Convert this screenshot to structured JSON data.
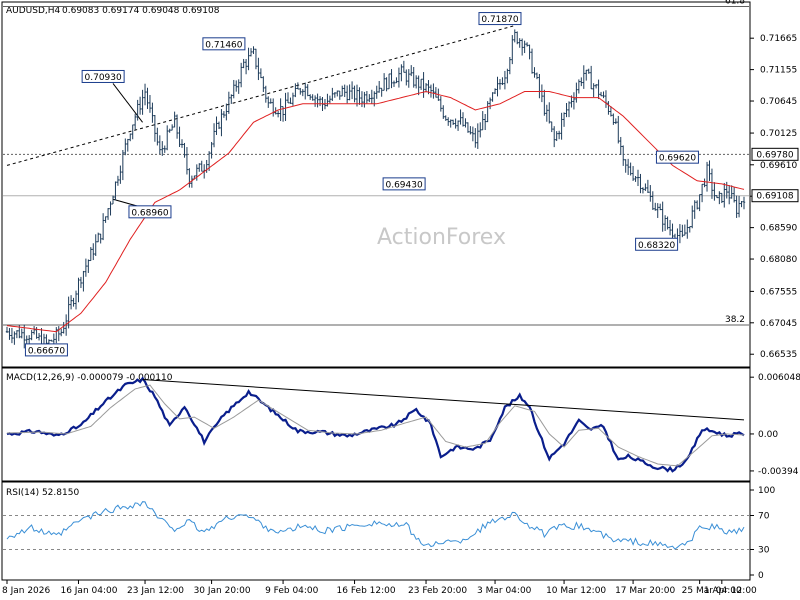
{
  "header": {
    "symbol": "AUDUSD,H4",
    "ohlc": "0.69083 0.69174 0.69048 0.69108"
  },
  "watermark": "ActionForex",
  "colors": {
    "candle": "#1e3c5a",
    "ma": "#e02020",
    "macd": "#0a1e8c",
    "signal": "#9a9a9a",
    "rsi": "#3a8fd6",
    "price_box_border": "#1a3c8c"
  },
  "chart_data": [
    {
      "type": "candlestick",
      "panel": "price",
      "title": "AUDUSD,H4",
      "y_ticks": [
        "0.71665",
        "0.71155",
        "0.70645",
        "0.70125",
        "0.69610",
        "0.69100",
        "0.68590",
        "0.68080",
        "0.67555",
        "0.67045",
        "0.66535"
      ],
      "ylim": [
        0.6636,
        0.7222
      ],
      "x_ticks": [
        "8 Jan 2026",
        "16 Jan 04:00",
        "23 Jan 12:00",
        "30 Jan 20:00",
        "9 Feb 04:00",
        "16 Feb 12:00",
        "23 Feb 20:00",
        "3 Mar 04:00",
        "10 Mar 12:00",
        "17 Mar 20:00",
        "25 Mar 04:00",
        "1 Apr 12:00"
      ],
      "anchors": [
        {
          "bar": 0,
          "v": 0.669
        },
        {
          "bar": 10,
          "v": 0.6685
        },
        {
          "bar": 16,
          "v": 0.6669
        },
        {
          "bar": 22,
          "v": 0.669
        },
        {
          "bar": 30,
          "v": 0.678
        },
        {
          "bar": 38,
          "v": 0.685
        },
        {
          "bar": 44,
          "v": 0.693
        },
        {
          "bar": 50,
          "v": 0.702
        },
        {
          "bar": 56,
          "v": 0.708
        },
        {
          "bar": 62,
          "v": 0.698
        },
        {
          "bar": 68,
          "v": 0.703
        },
        {
          "bar": 74,
          "v": 0.694
        },
        {
          "bar": 80,
          "v": 0.696
        },
        {
          "bar": 86,
          "v": 0.703
        },
        {
          "bar": 92,
          "v": 0.708
        },
        {
          "bar": 96,
          "v": 0.7125
        },
        {
          "bar": 100,
          "v": 0.714
        },
        {
          "bar": 106,
          "v": 0.706
        },
        {
          "bar": 112,
          "v": 0.705
        },
        {
          "bar": 120,
          "v": 0.709
        },
        {
          "bar": 128,
          "v": 0.706
        },
        {
          "bar": 136,
          "v": 0.708
        },
        {
          "bar": 144,
          "v": 0.707
        },
        {
          "bar": 152,
          "v": 0.709
        },
        {
          "bar": 160,
          "v": 0.711
        },
        {
          "bar": 166,
          "v": 0.7095
        },
        {
          "bar": 172,
          "v": 0.708
        },
        {
          "bar": 178,
          "v": 0.704
        },
        {
          "bar": 184,
          "v": 0.703
        },
        {
          "bar": 190,
          "v": 0.7
        },
        {
          "bar": 196,
          "v": 0.706
        },
        {
          "bar": 202,
          "v": 0.711
        },
        {
          "bar": 206,
          "v": 0.717
        },
        {
          "bar": 210,
          "v": 0.716
        },
        {
          "bar": 216,
          "v": 0.708
        },
        {
          "bar": 222,
          "v": 0.7
        },
        {
          "bar": 228,
          "v": 0.706
        },
        {
          "bar": 234,
          "v": 0.711
        },
        {
          "bar": 240,
          "v": 0.708
        },
        {
          "bar": 246,
          "v": 0.704
        },
        {
          "bar": 250,
          "v": 0.696
        },
        {
          "bar": 256,
          "v": 0.694
        },
        {
          "bar": 262,
          "v": 0.69
        },
        {
          "bar": 268,
          "v": 0.686
        },
        {
          "bar": 274,
          "v": 0.684
        },
        {
          "bar": 280,
          "v": 0.69
        },
        {
          "bar": 284,
          "v": 0.695
        },
        {
          "bar": 288,
          "v": 0.69
        },
        {
          "bar": 292,
          "v": 0.692
        },
        {
          "bar": 296,
          "v": 0.689
        },
        {
          "bar": 299,
          "v": 0.6911
        }
      ],
      "ma_anchors": [
        {
          "bar": 0,
          "v": 0.67
        },
        {
          "bar": 20,
          "v": 0.669
        },
        {
          "bar": 30,
          "v": 0.672
        },
        {
          "bar": 40,
          "v": 0.677
        },
        {
          "bar": 50,
          "v": 0.684
        },
        {
          "bar": 60,
          "v": 0.69
        },
        {
          "bar": 70,
          "v": 0.692
        },
        {
          "bar": 80,
          "v": 0.695
        },
        {
          "bar": 90,
          "v": 0.698
        },
        {
          "bar": 100,
          "v": 0.703
        },
        {
          "bar": 110,
          "v": 0.705
        },
        {
          "bar": 120,
          "v": 0.706
        },
        {
          "bar": 130,
          "v": 0.706
        },
        {
          "bar": 140,
          "v": 0.706
        },
        {
          "bar": 150,
          "v": 0.706
        },
        {
          "bar": 160,
          "v": 0.707
        },
        {
          "bar": 170,
          "v": 0.708
        },
        {
          "bar": 180,
          "v": 0.707
        },
        {
          "bar": 190,
          "v": 0.705
        },
        {
          "bar": 200,
          "v": 0.706
        },
        {
          "bar": 210,
          "v": 0.708
        },
        {
          "bar": 220,
          "v": 0.708
        },
        {
          "bar": 230,
          "v": 0.707
        },
        {
          "bar": 240,
          "v": 0.707
        },
        {
          "bar": 250,
          "v": 0.704
        },
        {
          "bar": 260,
          "v": 0.7
        },
        {
          "bar": 270,
          "v": 0.696
        },
        {
          "bar": 280,
          "v": 0.6935
        },
        {
          "bar": 290,
          "v": 0.693
        },
        {
          "bar": 299,
          "v": 0.6921
        }
      ],
      "levels": [
        {
          "label": "61.8",
          "value": 0.7218
        },
        {
          "label": "",
          "value": 0.6978,
          "box": "0.69780"
        },
        {
          "label": "",
          "value": 0.69108,
          "box": "0.69108"
        },
        {
          "label": "38.2",
          "value": 0.6701
        }
      ],
      "price_labels": [
        {
          "text": "0.66670",
          "bar": 16,
          "value": 0.6667
        },
        {
          "text": "0.70930",
          "bar": 39,
          "value": 0.7093
        },
        {
          "text": "0.68960",
          "bar": 58,
          "value": 0.6896
        },
        {
          "text": "0.71460",
          "bar": 88,
          "value": 0.7146
        },
        {
          "text": "0.69430",
          "bar": 168,
          "value": 0.6943
        },
        {
          "text": "0.71870",
          "bar": 200,
          "value": 0.7187
        },
        {
          "text": "0.69620",
          "bar": 272,
          "value": 0.6962
        },
        {
          "text": "0.68320",
          "bar": 268,
          "value": 0.6832
        }
      ],
      "trendlines": [
        {
          "from": {
            "bar": 0,
            "v": 0.696
          },
          "to": {
            "bar": 206,
            "v": 0.7187
          },
          "dashed": true
        },
        {
          "from": {
            "bar": 43,
            "v": 0.7093
          },
          "to": {
            "bar": 55,
            "v": 0.703
          },
          "dashed": false
        },
        {
          "from": {
            "bar": 43,
            "v": 0.6905
          },
          "to": {
            "bar": 61,
            "v": 0.6885
          },
          "dashed": false
        }
      ]
    },
    {
      "type": "line",
      "panel": "macd",
      "title": "MACD(12,26,9) -0.000079 -0.000110",
      "y_ticks": [
        "0.006048",
        "0.00",
        "-0.00394"
      ],
      "ylim": [
        -0.0048,
        0.0066
      ],
      "series": [
        {
          "name": "MACD",
          "anchors": [
            [
              0,
              0.0
            ],
            [
              12,
              0.0003
            ],
            [
              20,
              -0.0002
            ],
            [
              30,
              0.0009
            ],
            [
              38,
              0.003
            ],
            [
              48,
              0.0052
            ],
            [
              55,
              0.0058
            ],
            [
              60,
              0.004
            ],
            [
              66,
              0.0008
            ],
            [
              72,
              0.003
            ],
            [
              80,
              -0.0008
            ],
            [
              88,
              0.002
            ],
            [
              98,
              0.0045
            ],
            [
              108,
              0.0024
            ],
            [
              118,
              0.0003
            ],
            [
              128,
              0.0002
            ],
            [
              138,
              -0.0002
            ],
            [
              148,
              0.0004
            ],
            [
              158,
              0.001
            ],
            [
              166,
              0.0026
            ],
            [
              172,
              0.001
            ],
            [
              176,
              -0.0024
            ],
            [
              182,
              -0.0014
            ],
            [
              190,
              -0.0016
            ],
            [
              196,
              -0.0006
            ],
            [
              202,
              0.0028
            ],
            [
              208,
              0.004
            ],
            [
              212,
              0.003
            ],
            [
              216,
              0.0
            ],
            [
              220,
              -0.0026
            ],
            [
              226,
              -0.001
            ],
            [
              232,
              0.0014
            ],
            [
              236,
              0.0005
            ],
            [
              242,
              0.0008
            ],
            [
              248,
              -0.0028
            ],
            [
              252,
              -0.0024
            ],
            [
              258,
              -0.003
            ],
            [
              264,
              -0.0036
            ],
            [
              270,
              -0.0038
            ],
            [
              276,
              -0.0028
            ],
            [
              282,
              0.0005
            ],
            [
              288,
              0.0002
            ],
            [
              292,
              -0.0002
            ],
            [
              296,
              0.0
            ],
            [
              299,
              -8e-05
            ]
          ]
        },
        {
          "name": "Signal",
          "anchors": [
            [
              0,
              0.0001
            ],
            [
              14,
              0.0002
            ],
            [
              24,
              0.0
            ],
            [
              34,
              0.0008
            ],
            [
              42,
              0.0028
            ],
            [
              52,
              0.0048
            ],
            [
              58,
              0.0052
            ],
            [
              64,
              0.0032
            ],
            [
              70,
              0.0016
            ],
            [
              76,
              0.0018
            ],
            [
              84,
              0.0006
            ],
            [
              92,
              0.0018
            ],
            [
              102,
              0.0036
            ],
            [
              112,
              0.002
            ],
            [
              122,
              0.0004
            ],
            [
              132,
              0.0001
            ],
            [
              142,
              0.0
            ],
            [
              152,
              0.0004
            ],
            [
              162,
              0.0012
            ],
            [
              170,
              0.0018
            ],
            [
              178,
              -0.0008
            ],
            [
              186,
              -0.0014
            ],
            [
              194,
              -0.001
            ],
            [
              200,
              0.0012
            ],
            [
              206,
              0.003
            ],
            [
              214,
              0.0024
            ],
            [
              220,
              0.0
            ],
            [
              226,
              -0.0014
            ],
            [
              232,
              0.0004
            ],
            [
              240,
              0.0006
            ],
            [
              248,
              -0.0014
            ],
            [
              256,
              -0.0024
            ],
            [
              264,
              -0.0032
            ],
            [
              272,
              -0.0034
            ],
            [
              280,
              -0.0016
            ],
            [
              286,
              -0.0002
            ],
            [
              292,
              0.0
            ],
            [
              299,
              -0.00011
            ]
          ]
        }
      ],
      "trendline": {
        "from": {
          "bar": 55,
          "v": 0.0058
        },
        "to": {
          "bar": 299,
          "v": 0.0015
        }
      }
    },
    {
      "type": "line",
      "panel": "rsi",
      "title": "RSI(14) 52.8150",
      "y_ticks": [
        "100",
        "70",
        "30",
        "0"
      ],
      "ylim": [
        0,
        100
      ],
      "levels": [
        70,
        30
      ],
      "series": [
        {
          "name": "RSI",
          "anchors": [
            [
              0,
              45
            ],
            [
              10,
              55
            ],
            [
              20,
              45
            ],
            [
              30,
              65
            ],
            [
              40,
              75
            ],
            [
              50,
              82
            ],
            [
              56,
              85
            ],
            [
              62,
              65
            ],
            [
              68,
              55
            ],
            [
              74,
              62
            ],
            [
              80,
              50
            ],
            [
              86,
              62
            ],
            [
              94,
              72
            ],
            [
              100,
              66
            ],
            [
              106,
              55
            ],
            [
              112,
              50
            ],
            [
              120,
              58
            ],
            [
              128,
              52
            ],
            [
              136,
              55
            ],
            [
              144,
              60
            ],
            [
              150,
              62
            ],
            [
              156,
              58
            ],
            [
              162,
              58
            ],
            [
              166,
              45
            ],
            [
              170,
              32
            ],
            [
              176,
              40
            ],
            [
              182,
              38
            ],
            [
              188,
              46
            ],
            [
              194,
              58
            ],
            [
              200,
              67
            ],
            [
              206,
              72
            ],
            [
              212,
              58
            ],
            [
              218,
              48
            ],
            [
              224,
              56
            ],
            [
              232,
              58
            ],
            [
              240,
              50
            ],
            [
              246,
              40
            ],
            [
              252,
              40
            ],
            [
              258,
              38
            ],
            [
              264,
              36
            ],
            [
              270,
              32
            ],
            [
              276,
              36
            ],
            [
              282,
              58
            ],
            [
              288,
              56
            ],
            [
              292,
              50
            ],
            [
              296,
              52
            ],
            [
              299,
              53
            ]
          ]
        }
      ]
    }
  ]
}
